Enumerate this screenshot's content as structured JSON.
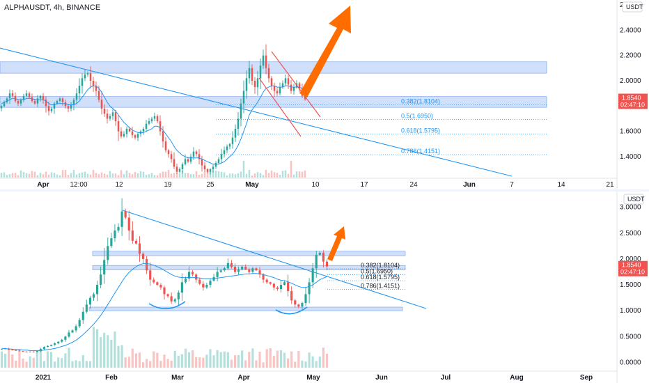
{
  "header": {
    "title": "ALPHAUSDT, 4h, BINANCE",
    "currency_unit": "USDT"
  },
  "colors": {
    "up": "#26a69a",
    "down": "#ef5350",
    "zone": "#a9c4f5",
    "trend": "#2196f3",
    "arrow": "#ff6d00",
    "badge": "#ef5350"
  },
  "chart_data": [
    {
      "type": "candlestick",
      "timeframe": "4h",
      "y_ticks": [
        "2.4000",
        "2.2000",
        "2.0000",
        "1.8000",
        "1.6000",
        "1.4000"
      ],
      "y_top_label": "2",
      "x_ticks": [
        "Apr",
        "12:00",
        "12",
        "19",
        "25",
        "May",
        "10",
        "17",
        "24",
        "Jun",
        "7",
        "14",
        "21"
      ],
      "price_badge": {
        "price": "1.8540",
        "countdown": "02:47:10"
      },
      "fib_levels": [
        {
          "label": "0.382(1.8104)",
          "price": 1.8104
        },
        {
          "label": "0.5(1.6950)",
          "price": 1.695
        },
        {
          "label": "0.618(1.5795)",
          "price": 1.5795
        },
        {
          "label": "0.786(1.4151)",
          "price": 1.4151
        }
      ],
      "zones": [
        [
          2.06,
          2.15
        ],
        [
          1.79,
          1.875
        ]
      ],
      "series": [
        {
          "type": "candles",
          "values": [
            1.8,
            1.83,
            1.86,
            1.9,
            1.88,
            1.84,
            1.82,
            1.85,
            1.88,
            1.9,
            1.87,
            1.84,
            1.82,
            1.86,
            1.88,
            1.85,
            1.8,
            1.76,
            1.78,
            1.82,
            1.84,
            1.86,
            1.83,
            1.8,
            1.78,
            1.81,
            1.85,
            1.9,
            1.96,
            2.02,
            2.05,
            2.06,
            2.0,
            1.96,
            1.92,
            1.85,
            1.78,
            1.74,
            1.7,
            1.72,
            1.75,
            1.68,
            1.6,
            1.56,
            1.58,
            1.62,
            1.6,
            1.57,
            1.55,
            1.58,
            1.6,
            1.62,
            1.66,
            1.68,
            1.7,
            1.72,
            1.68,
            1.6,
            1.52,
            1.45,
            1.42,
            1.38,
            1.32,
            1.28,
            1.3,
            1.34,
            1.38,
            1.36,
            1.4,
            1.44,
            1.42,
            1.38,
            1.33,
            1.3,
            1.28,
            1.3,
            1.32,
            1.35,
            1.38,
            1.42,
            1.45,
            1.48,
            1.5,
            1.55,
            1.62,
            1.7,
            1.82,
            1.92,
            2.02,
            2.1,
            2.0,
            1.95,
            2.02,
            2.12,
            2.2,
            2.1,
            2.02,
            1.96,
            1.92,
            1.9,
            1.95,
            1.98,
            2.02,
            1.97,
            1.92,
            1.95,
            1.98,
            1.94,
            1.88,
            1.854
          ]
        },
        {
          "type": "moving_average",
          "values": [
            1.82,
            1.83,
            1.84,
            1.85,
            1.86,
            1.86,
            1.85,
            1.85,
            1.85,
            1.86,
            1.86,
            1.86,
            1.85,
            1.85,
            1.85,
            1.85,
            1.84,
            1.82,
            1.81,
            1.81,
            1.82,
            1.82,
            1.82,
            1.82,
            1.81,
            1.81,
            1.81,
            1.82,
            1.84,
            1.87,
            1.9,
            1.93,
            1.95,
            1.96,
            1.96,
            1.94,
            1.91,
            1.87,
            1.83,
            1.8,
            1.78,
            1.76,
            1.73,
            1.7,
            1.67,
            1.65,
            1.63,
            1.61,
            1.6,
            1.59,
            1.59,
            1.59,
            1.6,
            1.61,
            1.62,
            1.64,
            1.64,
            1.63,
            1.61,
            1.58,
            1.55,
            1.52,
            1.48,
            1.45,
            1.43,
            1.41,
            1.4,
            1.39,
            1.39,
            1.39,
            1.39,
            1.39,
            1.38,
            1.37,
            1.36,
            1.35,
            1.34,
            1.34,
            1.34,
            1.35,
            1.36,
            1.38,
            1.4,
            1.42,
            1.45,
            1.49,
            1.54,
            1.6,
            1.66,
            1.73,
            1.77,
            1.8,
            1.83,
            1.87,
            1.91,
            1.94,
            1.95,
            1.96,
            1.96,
            1.95,
            1.95,
            1.95,
            1.96,
            1.96,
            1.95,
            1.95,
            1.95,
            1.95,
            1.94,
            1.93
          ]
        }
      ]
    },
    {
      "type": "candlestick",
      "timeframe": "daily",
      "y_ticks": [
        "3.0000",
        "2.5000",
        "2.0000",
        "1.5000",
        "1.0000",
        "0.5000",
        "0.0000"
      ],
      "x_ticks": [
        "2021",
        "Feb",
        "Mar",
        "Apr",
        "May",
        "Jun",
        "Jul",
        "Aug",
        "Sep"
      ],
      "price_badge": {
        "price": "1.8540",
        "countdown": "02:47:10"
      },
      "fib_levels": [
        {
          "label": "0.382(1.8104)",
          "price": 1.8104
        },
        {
          "label": "0.5(1.6950)",
          "price": 1.695
        },
        {
          "label": "0.618(1.5795)",
          "price": 1.5795
        },
        {
          "label": "0.786(1.4151)",
          "price": 1.4151
        }
      ],
      "zones": [
        [
          2.06,
          2.15
        ],
        [
          1.79,
          1.875
        ],
        [
          1.0,
          1.07
        ]
      ],
      "series": [
        {
          "type": "candles",
          "values": [
            0.26,
            0.27,
            0.25,
            0.24,
            0.23,
            0.22,
            0.21,
            0.2,
            0.21,
            0.2,
            0.22,
            0.26,
            0.3,
            0.32,
            0.34,
            0.37,
            0.4,
            0.44,
            0.5,
            0.58,
            0.62,
            0.7,
            0.82,
            0.98,
            1.12,
            1.25,
            1.32,
            1.5,
            1.7,
            1.98,
            2.25,
            2.4,
            2.55,
            2.62,
            2.92,
            2.8,
            2.55,
            2.35,
            2.3,
            2.1,
            2.0,
            1.78,
            1.6,
            1.55,
            1.5,
            1.45,
            1.32,
            1.28,
            1.18,
            1.22,
            1.35,
            1.55,
            1.62,
            1.75,
            1.7,
            1.6,
            1.52,
            1.45,
            1.5,
            1.58,
            1.65,
            1.75,
            1.78,
            1.82,
            1.92,
            1.85,
            1.75,
            1.8,
            1.85,
            1.8,
            1.75,
            1.82,
            1.78,
            1.7,
            1.6,
            1.55,
            1.52,
            1.45,
            1.42,
            1.5,
            1.55,
            1.38,
            1.2,
            1.12,
            1.08,
            1.15,
            1.32,
            1.55,
            1.82,
            2.08,
            2.12,
            1.95,
            1.854
          ]
        },
        {
          "type": "moving_average",
          "values": [
            0.27,
            0.27,
            0.26,
            0.26,
            0.25,
            0.25,
            0.24,
            0.24,
            0.23,
            0.23,
            0.23,
            0.23,
            0.24,
            0.25,
            0.26,
            0.27,
            0.29,
            0.31,
            0.33,
            0.36,
            0.39,
            0.43,
            0.48,
            0.54,
            0.6,
            0.67,
            0.74,
            0.82,
            0.91,
            1.01,
            1.12,
            1.23,
            1.34,
            1.45,
            1.56,
            1.66,
            1.74,
            1.8,
            1.85,
            1.89,
            1.91,
            1.91,
            1.9,
            1.88,
            1.85,
            1.82,
            1.78,
            1.74,
            1.7,
            1.67,
            1.65,
            1.64,
            1.64,
            1.64,
            1.64,
            1.64,
            1.63,
            1.62,
            1.62,
            1.62,
            1.62,
            1.63,
            1.64,
            1.65,
            1.66,
            1.67,
            1.68,
            1.69,
            1.7,
            1.71,
            1.71,
            1.72,
            1.72,
            1.71,
            1.7,
            1.68,
            1.66,
            1.64,
            1.61,
            1.59,
            1.58,
            1.56,
            1.53,
            1.5,
            1.47,
            1.45,
            1.45,
            1.47,
            1.5,
            1.55,
            1.6,
            1.63,
            1.66
          ]
        }
      ]
    }
  ]
}
